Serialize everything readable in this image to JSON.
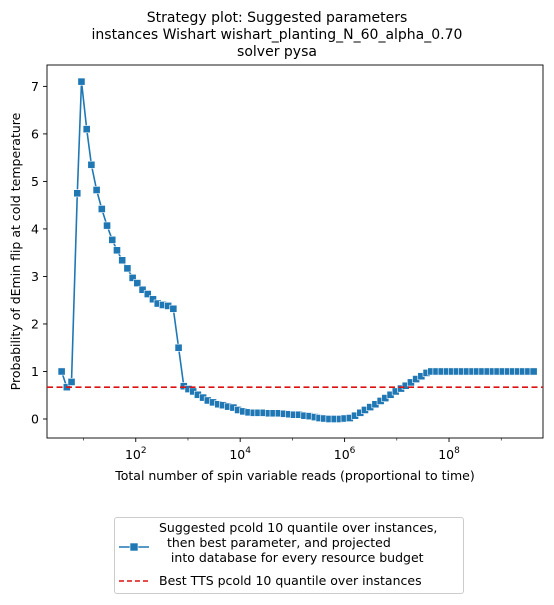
{
  "chart_data": {
    "type": "line",
    "title_lines": [
      "Strategy plot: Suggested parameters",
      "instances Wishart wishart_planting_N_60_alpha_0.70",
      "solver pysa"
    ],
    "xlabel": "Total number of spin variable reads (proportional to time)",
    "ylabel": "Probability of dEmin flip at cold temperature",
    "x_scale": "log",
    "x_tick_labels": [
      {
        "base": "10",
        "exp": "2"
      },
      {
        "base": "10",
        "exp": "4"
      },
      {
        "base": "10",
        "exp": "6"
      },
      {
        "base": "10",
        "exp": "8"
      }
    ],
    "y_ticks": [
      "0",
      "1",
      "2",
      "3",
      "4",
      "5",
      "6",
      "7"
    ],
    "ylim": [
      -0.4,
      7.45
    ],
    "xlim_log10": [
      0.3,
      9.8
    ],
    "series": [
      {
        "name": "Suggested pcold 10 quantile over instances,\n  then best parameter, and projected\n   into database for every resource budget",
        "color": "#1f77b4",
        "marker": "square",
        "x_log10": [
          0.58,
          0.68,
          0.77,
          0.88,
          0.96,
          1.06,
          1.15,
          1.25,
          1.35,
          1.45,
          1.55,
          1.64,
          1.74,
          1.84,
          1.94,
          2.03,
          2.13,
          2.23,
          2.33,
          2.42,
          2.52,
          2.62,
          2.72,
          2.82,
          2.92,
          3.01,
          3.1,
          3.19,
          3.29,
          3.38,
          3.48,
          3.58,
          3.67,
          3.77,
          3.87,
          3.96,
          4.06,
          4.16,
          4.26,
          4.35,
          4.45,
          4.55,
          4.64,
          4.74,
          4.84,
          4.94,
          5.03,
          5.13,
          5.23,
          5.33,
          5.43,
          5.52,
          5.61,
          5.71,
          5.81,
          5.91,
          6.0,
          6.1,
          6.2,
          6.3,
          6.39,
          6.49,
          6.59,
          6.69,
          6.78,
          6.88,
          6.98,
          7.08,
          7.17,
          7.27,
          7.37,
          7.47,
          7.57,
          7.66,
          7.76,
          7.86,
          7.96,
          8.06,
          8.15,
          8.25,
          8.35,
          8.45,
          8.54,
          8.64,
          8.74,
          8.84,
          8.93,
          9.03,
          9.13,
          9.23,
          9.32,
          9.42,
          9.52,
          9.62
        ],
        "y": [
          1.0,
          0.67,
          0.78,
          4.75,
          7.1,
          6.1,
          5.35,
          4.82,
          4.42,
          4.07,
          3.77,
          3.55,
          3.34,
          3.17,
          2.97,
          2.86,
          2.72,
          2.63,
          2.52,
          2.43,
          2.4,
          2.38,
          2.32,
          1.5,
          0.69,
          0.63,
          0.58,
          0.51,
          0.45,
          0.39,
          0.35,
          0.31,
          0.29,
          0.26,
          0.24,
          0.19,
          0.16,
          0.14,
          0.13,
          0.13,
          0.13,
          0.12,
          0.12,
          0.12,
          0.11,
          0.1,
          0.09,
          0.09,
          0.07,
          0.06,
          0.04,
          0.02,
          0.01,
          0.0,
          0.0,
          0.0,
          0.01,
          0.02,
          0.07,
          0.13,
          0.19,
          0.25,
          0.31,
          0.38,
          0.44,
          0.51,
          0.58,
          0.64,
          0.7,
          0.77,
          0.84,
          0.9,
          0.97,
          1.0,
          1.0,
          1.0,
          1.0,
          1.0,
          1.0,
          1.0,
          1.0,
          1.0,
          1.0,
          1.0,
          1.0,
          1.0,
          1.0,
          1.0,
          1.0,
          1.0,
          1.0,
          1.0,
          1.0,
          1.0
        ]
      },
      {
        "name": "Best TTS pcold 10 quantile over instances",
        "color": "#dd1111",
        "style": "dashed",
        "y_const": 0.67
      }
    ],
    "grid": false,
    "legend_placement": "below"
  }
}
